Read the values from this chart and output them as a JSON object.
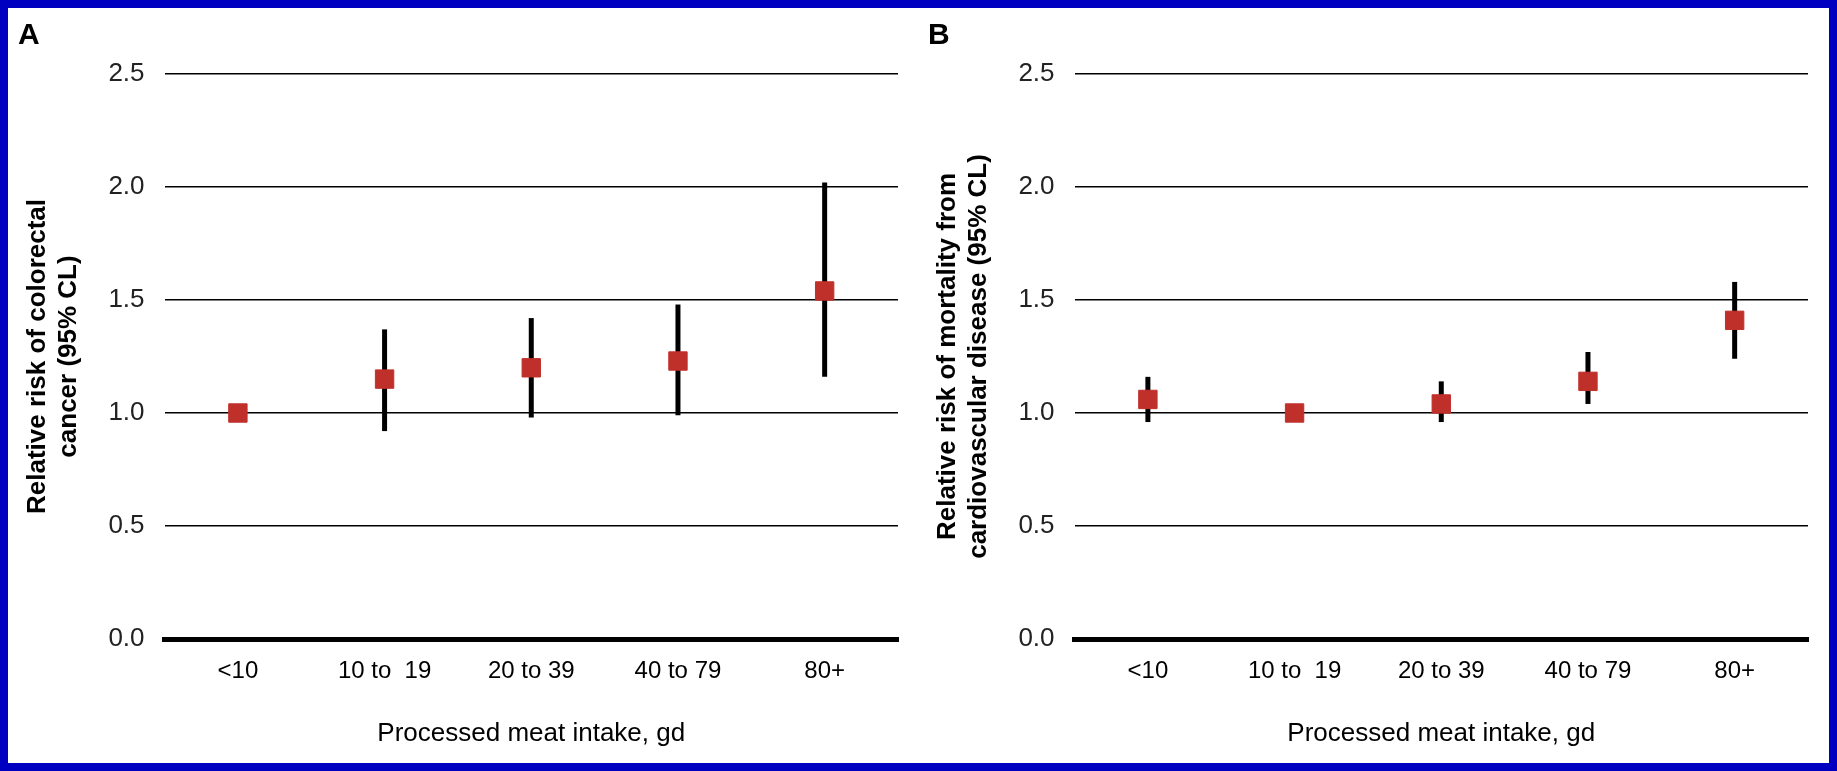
{
  "chart_data": [
    {
      "type": "scatter",
      "title": "A",
      "xlabel": "Processed meat intake, gd",
      "ylabel": "Relative risk of colorectal cancer (95% CL)",
      "categories": [
        "<10",
        "10 to  19",
        "20 to 39",
        "40 to 79",
        "80+"
      ],
      "series": [
        {
          "color": "#c0302b",
          "values": [
            1.0,
            1.15,
            1.2,
            1.23,
            1.54
          ],
          "errors": [
            null,
            [
              0.92,
              1.37
            ],
            [
              0.98,
              1.42
            ],
            [
              0.99,
              1.48
            ],
            [
              1.16,
              2.02
            ]
          ]
        }
      ],
      "ylim": [
        0,
        2.5
      ],
      "yticks": [
        {
          "value": 0,
          "label": "0.0"
        },
        0.5,
        {
          "value": 1,
          "label": "1.0"
        },
        1.5,
        {
          "value": 2,
          "label": "2.0"
        },
        2.5
      ],
      "grid": "y",
      "marker": "square",
      "legend": false
    },
    {
      "type": "scatter",
      "title": "B",
      "xlabel": "Processed meat intake, gd",
      "ylabel": "Relative risk of mortality from cardiovascular disease (95% CL)",
      "categories": [
        "<10",
        "10 to  19",
        "20 to 39",
        "40 to 79",
        "80+"
      ],
      "series": [
        {
          "color": "#c0302b",
          "values": [
            1.06,
            1.0,
            1.04,
            1.14,
            1.41
          ],
          "errors": [
            [
              0.96,
              1.16
            ],
            null,
            [
              0.96,
              1.14
            ],
            [
              1.04,
              1.27
            ],
            [
              1.24,
              1.58
            ]
          ]
        }
      ],
      "ylim": [
        0,
        2.5
      ],
      "yticks": [
        {
          "value": 0,
          "label": "0.0"
        },
        0.5,
        {
          "value": 1,
          "label": "1.0"
        },
        1.5,
        {
          "value": 2,
          "label": "2.0"
        },
        2.5
      ],
      "grid": "y",
      "marker": "square",
      "legend": false
    }
  ]
}
